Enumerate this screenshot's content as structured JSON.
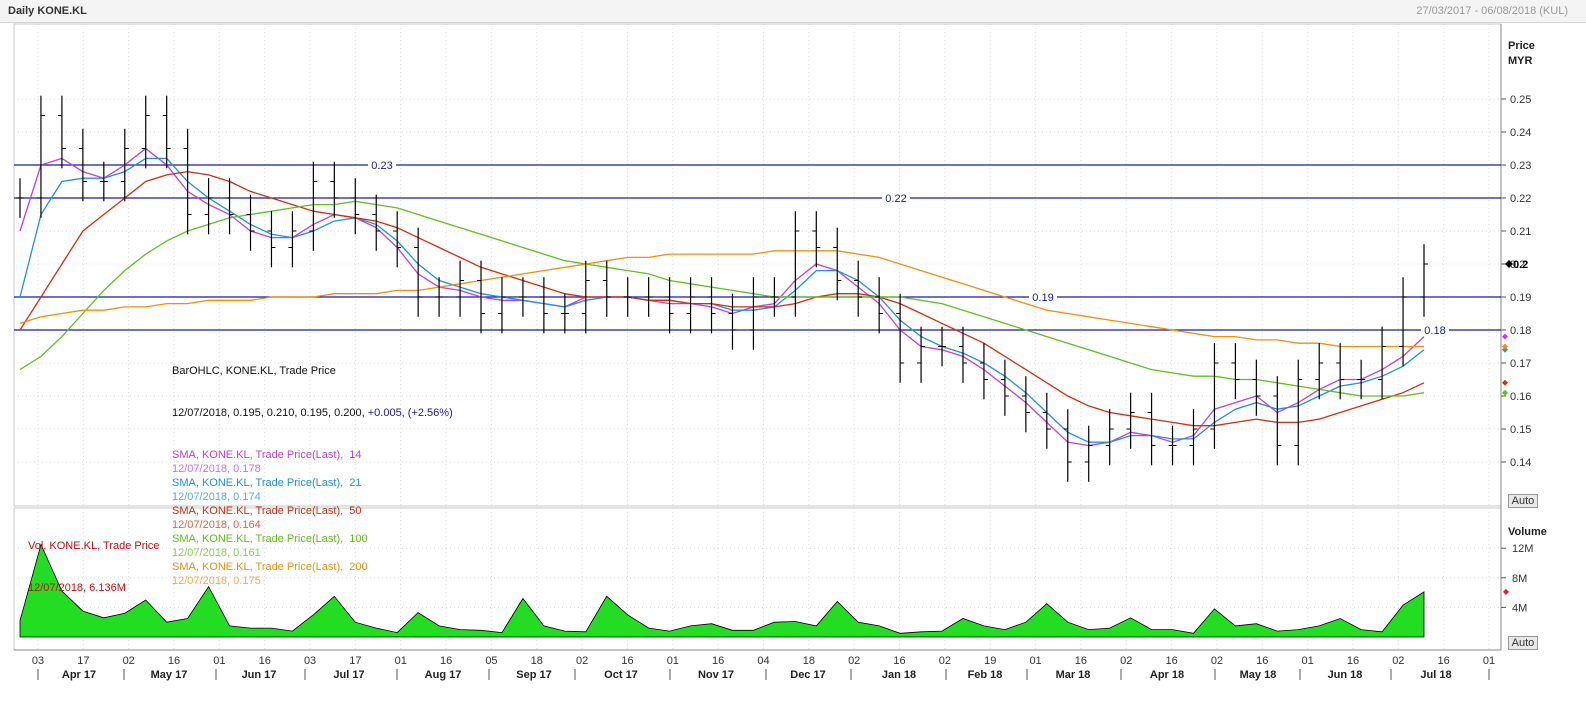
{
  "header": {
    "title": "Daily KONE.KL",
    "range": "27/03/2017 - 06/08/2018 (KUL)"
  },
  "price_axis": {
    "title": "Price",
    "unit": "MYR",
    "ticks": [
      "0.25",
      "0.24",
      "0.23",
      "0.22",
      "0.21",
      "0.2",
      "0.19",
      "0.18",
      "0.17",
      "0.16",
      "0.15",
      "0.14"
    ],
    "last_value_label": "0.2"
  },
  "volume_axis": {
    "title": "Volume",
    "ticks": [
      "12M",
      "8M",
      "4M"
    ]
  },
  "auto_label": "Auto",
  "legend": {
    "bar_title": "BarOHLC, KONE.KL, Trade Price",
    "bar_values": "12/07/2018, 0.195, 0.210, 0.195, 0.200,",
    "bar_change": "+0.005, (+2.56%)",
    "sma": [
      {
        "label": "SMA, KONE.KL, Trade Price(Last),  14",
        "value": "12/07/2018, 0.178",
        "color": "#c040e0"
      },
      {
        "label": "SMA, KONE.KL, Trade Price(Last),  21",
        "value": "12/07/2018, 0.174",
        "color": "#2090e0"
      },
      {
        "label": "SMA, KONE.KL, Trade Price(Last),  50",
        "value": "12/07/2018, 0.164",
        "color": "#d03010"
      },
      {
        "label": "SMA, KONE.KL, Trade Price(Last),  100",
        "value": "12/07/2018, 0.161",
        "color": "#60c020"
      },
      {
        "label": "SMA, KONE.KL, Trade Price(Last),  200",
        "value": "12/07/2018, 0.175",
        "color": "#f09010"
      }
    ],
    "vol_title": "Vol, KONE.KL, Trade Price",
    "vol_value": "12/07/2018, 6.136M"
  },
  "x_axis": {
    "day_ticks": [
      "03",
      "17",
      "02",
      "16",
      "01",
      "16",
      "03",
      "17",
      "01",
      "16",
      "05",
      "18",
      "02",
      "16",
      "01",
      "16",
      "04",
      "18",
      "02",
      "16",
      "02",
      "19",
      "01",
      "16",
      "02",
      "16",
      "02",
      "16",
      "01",
      "16",
      "02",
      "16",
      "01"
    ],
    "month_labels": [
      "Apr 17",
      "May 17",
      "Jun 17",
      "Jul 17",
      "Aug 17",
      "Sep 17",
      "Oct 17",
      "Nov 17",
      "Dec 17",
      "Jan 18",
      "Feb 18",
      "Mar 18",
      "Apr 18",
      "May 18",
      "Jun 18",
      "Jul 18"
    ]
  },
  "chart_data": [
    {
      "type": "ohlc",
      "title": "Daily KONE.KL",
      "ylabel": "Price MYR",
      "ylim": [
        0.13,
        0.26
      ],
      "x": [
        "2017-03-27",
        "2017-04-03",
        "2017-04-10",
        "2017-04-17",
        "2017-04-24",
        "2017-05-01",
        "2017-05-08",
        "2017-05-15",
        "2017-05-22",
        "2017-05-29",
        "2017-06-05",
        "2017-06-12",
        "2017-06-19",
        "2017-06-26",
        "2017-07-03",
        "2017-07-10",
        "2017-07-17",
        "2017-07-24",
        "2017-07-31",
        "2017-08-07",
        "2017-08-14",
        "2017-08-21",
        "2017-08-28",
        "2017-09-04",
        "2017-09-11",
        "2017-09-18",
        "2017-09-25",
        "2017-10-02",
        "2017-10-09",
        "2017-10-16",
        "2017-10-23",
        "2017-10-30",
        "2017-11-06",
        "2017-11-13",
        "2017-11-20",
        "2017-11-27",
        "2017-12-04",
        "2017-12-11",
        "2017-12-18",
        "2017-12-25",
        "2018-01-01",
        "2018-01-08",
        "2018-01-15",
        "2018-01-22",
        "2018-01-29",
        "2018-02-05",
        "2018-02-12",
        "2018-02-19",
        "2018-02-26",
        "2018-03-05",
        "2018-03-12",
        "2018-03-19",
        "2018-03-26",
        "2018-04-02",
        "2018-04-09",
        "2018-04-16",
        "2018-04-23",
        "2018-04-30",
        "2018-05-07",
        "2018-05-14",
        "2018-05-21",
        "2018-05-28",
        "2018-06-04",
        "2018-06-11",
        "2018-06-18",
        "2018-06-25",
        "2018-07-02",
        "2018-07-09"
      ],
      "close": [
        0.22,
        0.245,
        0.235,
        0.225,
        0.225,
        0.235,
        0.245,
        0.235,
        0.215,
        0.22,
        0.215,
        0.21,
        0.205,
        0.21,
        0.225,
        0.22,
        0.215,
        0.21,
        0.205,
        0.19,
        0.19,
        0.195,
        0.185,
        0.19,
        0.19,
        0.185,
        0.185,
        0.195,
        0.19,
        0.19,
        0.19,
        0.185,
        0.19,
        0.185,
        0.18,
        0.19,
        0.19,
        0.21,
        0.205,
        0.195,
        0.19,
        0.185,
        0.17,
        0.175,
        0.175,
        0.17,
        0.165,
        0.16,
        0.155,
        0.15,
        0.14,
        0.145,
        0.15,
        0.155,
        0.145,
        0.145,
        0.15,
        0.17,
        0.165,
        0.16,
        0.145,
        0.165,
        0.17,
        0.165,
        0.165,
        0.175,
        0.19,
        0.2
      ],
      "lines": [
        {
          "name": "SMA 14",
          "color": "#c040e0",
          "values": [
            0.21,
            0.23,
            0.232,
            0.228,
            0.226,
            0.23,
            0.235,
            0.23,
            0.222,
            0.218,
            0.215,
            0.21,
            0.208,
            0.208,
            0.212,
            0.215,
            0.214,
            0.211,
            0.205,
            0.197,
            0.193,
            0.192,
            0.19,
            0.189,
            0.189,
            0.188,
            0.187,
            0.19,
            0.19,
            0.19,
            0.189,
            0.188,
            0.188,
            0.187,
            0.185,
            0.187,
            0.188,
            0.195,
            0.2,
            0.198,
            0.193,
            0.188,
            0.18,
            0.175,
            0.174,
            0.172,
            0.168,
            0.163,
            0.158,
            0.152,
            0.146,
            0.145,
            0.146,
            0.149,
            0.148,
            0.146,
            0.148,
            0.156,
            0.158,
            0.16,
            0.155,
            0.158,
            0.162,
            0.165,
            0.165,
            0.168,
            0.172,
            0.178
          ]
        },
        {
          "name": "SMA 21",
          "color": "#2090e0",
          "values": [
            0.19,
            0.215,
            0.225,
            0.226,
            0.226,
            0.228,
            0.232,
            0.232,
            0.225,
            0.22,
            0.216,
            0.212,
            0.209,
            0.208,
            0.21,
            0.213,
            0.214,
            0.212,
            0.207,
            0.2,
            0.195,
            0.193,
            0.191,
            0.19,
            0.189,
            0.188,
            0.187,
            0.189,
            0.19,
            0.19,
            0.189,
            0.189,
            0.188,
            0.188,
            0.186,
            0.186,
            0.187,
            0.192,
            0.198,
            0.198,
            0.195,
            0.19,
            0.183,
            0.178,
            0.175,
            0.173,
            0.17,
            0.166,
            0.161,
            0.155,
            0.149,
            0.146,
            0.146,
            0.148,
            0.148,
            0.147,
            0.147,
            0.152,
            0.156,
            0.158,
            0.156,
            0.157,
            0.16,
            0.163,
            0.164,
            0.166,
            0.169,
            0.174
          ]
        },
        {
          "name": "SMA 50",
          "color": "#d03010",
          "values": [
            0.18,
            0.19,
            0.2,
            0.21,
            0.215,
            0.22,
            0.225,
            0.227,
            0.228,
            0.227,
            0.225,
            0.222,
            0.22,
            0.218,
            0.216,
            0.215,
            0.214,
            0.213,
            0.211,
            0.208,
            0.205,
            0.202,
            0.199,
            0.197,
            0.195,
            0.193,
            0.191,
            0.19,
            0.19,
            0.19,
            0.189,
            0.189,
            0.188,
            0.188,
            0.187,
            0.187,
            0.187,
            0.188,
            0.19,
            0.191,
            0.191,
            0.19,
            0.188,
            0.185,
            0.182,
            0.179,
            0.176,
            0.172,
            0.168,
            0.164,
            0.16,
            0.157,
            0.155,
            0.154,
            0.153,
            0.152,
            0.151,
            0.151,
            0.152,
            0.153,
            0.152,
            0.152,
            0.153,
            0.155,
            0.157,
            0.159,
            0.161,
            0.164
          ]
        },
        {
          "name": "SMA 100",
          "color": "#60c020",
          "values": [
            0.168,
            0.172,
            0.178,
            0.185,
            0.192,
            0.198,
            0.203,
            0.207,
            0.21,
            0.212,
            0.214,
            0.215,
            0.216,
            0.217,
            0.218,
            0.218,
            0.219,
            0.218,
            0.217,
            0.215,
            0.213,
            0.211,
            0.209,
            0.207,
            0.205,
            0.203,
            0.201,
            0.2,
            0.199,
            0.198,
            0.197,
            0.195,
            0.194,
            0.193,
            0.192,
            0.191,
            0.19,
            0.19,
            0.19,
            0.19,
            0.19,
            0.19,
            0.19,
            0.189,
            0.188,
            0.186,
            0.184,
            0.182,
            0.18,
            0.178,
            0.176,
            0.174,
            0.172,
            0.17,
            0.168,
            0.167,
            0.166,
            0.166,
            0.165,
            0.165,
            0.164,
            0.163,
            0.162,
            0.161,
            0.16,
            0.16,
            0.16,
            0.161
          ]
        },
        {
          "name": "SMA 200",
          "color": "#f09010",
          "values": [
            0.182,
            0.184,
            0.185,
            0.186,
            0.186,
            0.187,
            0.187,
            0.188,
            0.188,
            0.189,
            0.189,
            0.189,
            0.19,
            0.19,
            0.19,
            0.191,
            0.191,
            0.191,
            0.192,
            0.192,
            0.193,
            0.194,
            0.195,
            0.196,
            0.197,
            0.198,
            0.199,
            0.2,
            0.201,
            0.202,
            0.202,
            0.203,
            0.203,
            0.203,
            0.203,
            0.203,
            0.204,
            0.204,
            0.204,
            0.204,
            0.203,
            0.202,
            0.2,
            0.198,
            0.196,
            0.194,
            0.192,
            0.19,
            0.188,
            0.186,
            0.185,
            0.184,
            0.183,
            0.182,
            0.181,
            0.18,
            0.179,
            0.178,
            0.178,
            0.177,
            0.177,
            0.176,
            0.176,
            0.175,
            0.175,
            0.175,
            0.175,
            0.175
          ]
        }
      ],
      "horizontal_lines": [
        {
          "value": 0.23,
          "label": "0.23"
        },
        {
          "value": 0.22,
          "label": "0.22"
        },
        {
          "value": 0.19,
          "label": "0.19"
        },
        {
          "value": 0.18,
          "label": "0.18"
        }
      ],
      "last_close": 0.2
    },
    {
      "type": "area",
      "ylabel": "Volume",
      "ylim": [
        0,
        14
      ],
      "x": [
        "2017-03-27",
        "2017-04-03",
        "2017-04-10",
        "2017-04-17",
        "2017-04-24",
        "2017-05-01",
        "2017-05-08",
        "2017-05-15",
        "2017-05-22",
        "2017-05-29",
        "2017-06-05",
        "2017-06-12",
        "2017-06-19",
        "2017-06-26",
        "2017-07-03",
        "2017-07-10",
        "2017-07-17",
        "2017-07-24",
        "2017-07-31",
        "2017-08-07",
        "2017-08-14",
        "2017-08-21",
        "2017-08-28",
        "2017-09-04",
        "2017-09-11",
        "2017-09-18",
        "2017-09-25",
        "2017-10-02",
        "2017-10-09",
        "2017-10-16",
        "2017-10-23",
        "2017-10-30",
        "2017-11-06",
        "2017-11-13",
        "2017-11-20",
        "2017-11-27",
        "2017-12-04",
        "2017-12-11",
        "2017-12-18",
        "2017-12-25",
        "2018-01-01",
        "2018-01-08",
        "2018-01-15",
        "2018-01-22",
        "2018-01-29",
        "2018-02-05",
        "2018-02-12",
        "2018-02-19",
        "2018-02-26",
        "2018-03-05",
        "2018-03-12",
        "2018-03-19",
        "2018-03-26",
        "2018-04-02",
        "2018-04-09",
        "2018-04-16",
        "2018-04-23",
        "2018-04-30",
        "2018-05-07",
        "2018-05-14",
        "2018-05-21",
        "2018-05-28",
        "2018-06-04",
        "2018-06-11",
        "2018-06-18",
        "2018-06-25",
        "2018-07-02",
        "2018-07-09"
      ],
      "values": [
        2.2,
        12.5,
        6.2,
        3.5,
        2.6,
        3.2,
        5.0,
        2.0,
        2.5,
        6.8,
        1.5,
        1.2,
        1.2,
        0.8,
        3.0,
        5.5,
        2.0,
        1.2,
        0.6,
        3.3,
        1.5,
        1.0,
        0.9,
        0.6,
        5.2,
        1.5,
        0.8,
        0.7,
        5.5,
        3.0,
        1.2,
        0.8,
        1.5,
        1.8,
        0.9,
        0.9,
        2.0,
        2.1,
        1.5,
        4.8,
        2.0,
        1.5,
        0.5,
        0.7,
        0.8,
        2.5,
        1.5,
        1.0,
        2.0,
        4.5,
        2.0,
        1.0,
        1.2,
        2.6,
        1.0,
        1.0,
        0.5,
        3.8,
        1.5,
        1.8,
        0.8,
        1.0,
        1.5,
        2.5,
        1.0,
        0.7,
        4.3,
        6.1
      ],
      "last_value": "6.136M"
    }
  ]
}
